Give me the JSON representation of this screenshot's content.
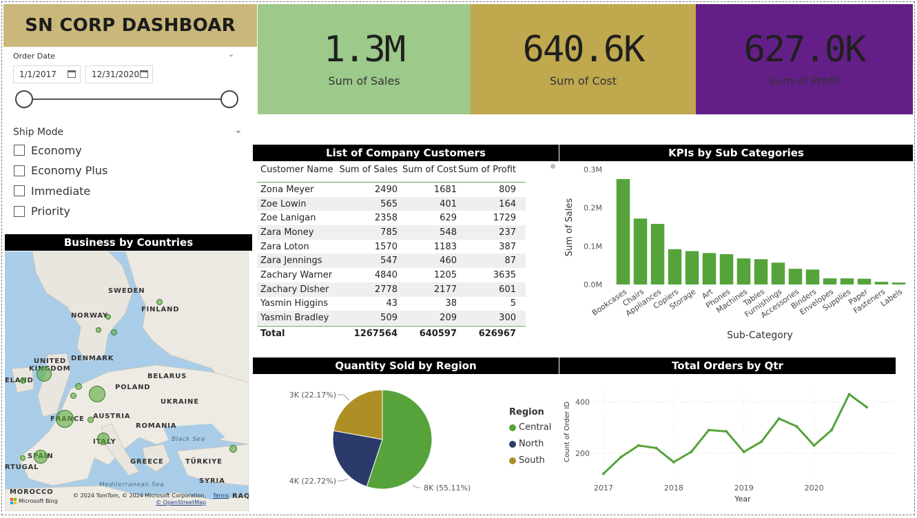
{
  "title": "SN CORP DASHBOAR",
  "order_date": {
    "label": "Order Date",
    "start": "1/1/2017",
    "end": "12/31/2020"
  },
  "ship_mode": {
    "label": "Ship Mode",
    "options": [
      "Economy",
      "Economy Plus",
      "Immediate",
      "Priority"
    ]
  },
  "kpis": [
    {
      "value": "1.3M",
      "label": "Sum of Sales",
      "color": "#9dc98a"
    },
    {
      "value": "640.6K",
      "label": "Sum of Cost",
      "color": "#bfa84e"
    },
    {
      "value": "627.0K",
      "label": "Sum of Profit",
      "color": "#631f87"
    }
  ],
  "customers": {
    "title": "List of Company Customers",
    "columns": [
      "Customer Name",
      "Sum of Sales",
      "Sum of Cost",
      "Sum of Profit"
    ],
    "rows": [
      [
        "Zona Meyer",
        "2490",
        "1681",
        "809"
      ],
      [
        "Zoe Lowin",
        "565",
        "401",
        "164"
      ],
      [
        "Zoe Lanigan",
        "2358",
        "629",
        "1729"
      ],
      [
        "Zara Money",
        "785",
        "548",
        "237"
      ],
      [
        "Zara Loton",
        "1570",
        "1183",
        "387"
      ],
      [
        "Zara Jennings",
        "547",
        "460",
        "87"
      ],
      [
        "Zachary Warner",
        "4840",
        "1205",
        "3635"
      ],
      [
        "Zachary Disher",
        "2778",
        "2177",
        "601"
      ],
      [
        "Yasmin Higgins",
        "43",
        "38",
        "5"
      ],
      [
        "Yasmin Bradley",
        "509",
        "209",
        "300"
      ]
    ],
    "total": [
      "Total",
      "1267564",
      "640597",
      "626967"
    ]
  },
  "map": {
    "title": "Business by Countries",
    "labels": [
      "SWEDEN",
      "FINLAND",
      "NORWAY",
      "UNITED",
      "KINGDOM",
      "DENMARK",
      "BELARUS",
      "POLAND",
      "UKRAINE",
      "FRANCE",
      "AUSTRIA",
      "ROMANIA",
      "ITALY",
      "SPAIN",
      "RTUGAL",
      "GREECE",
      "TÜRKIYE",
      "SYRIA",
      "MOROCCO",
      "ELAND",
      "RAQ"
    ],
    "seas": [
      "Black Sea",
      "Mediterranean Sea"
    ],
    "credit": "© 2024 TomTom, © 2024 Microsoft Corporation,",
    "terms": "Terms",
    "osm": "© OpenStreetMap",
    "bing": "Microsoft Bing",
    "bubble_color": "#5aaa3c"
  },
  "region_legend": {
    "title": "Region",
    "items": [
      {
        "name": "Central",
        "color": "#55a33a"
      },
      {
        "name": "North",
        "color": "#2b3a6b"
      },
      {
        "name": "South",
        "color": "#ad8f25"
      }
    ]
  },
  "chart_data": [
    {
      "type": "bar",
      "title": "KPIs by Sub Categories",
      "xlabel": "Sub-Category",
      "ylabel": "Sum of Sales",
      "categories": [
        "Bookcases",
        "Chairs",
        "Appliances",
        "Copiers",
        "Storage",
        "Art",
        "Phones",
        "Machines",
        "Tables",
        "Furnishings",
        "Accessories",
        "Binders",
        "Envelopes",
        "Supplies",
        "Paper",
        "Fasteners",
        "Labels"
      ],
      "values": [
        0.275,
        0.172,
        0.158,
        0.092,
        0.087,
        0.082,
        0.079,
        0.068,
        0.066,
        0.057,
        0.041,
        0.039,
        0.016,
        0.016,
        0.015,
        0.007,
        0.005
      ],
      "yticks": [
        "0.0M",
        "0.1M",
        "0.2M",
        "0.3M"
      ],
      "ylim": [
        0,
        0.3
      ],
      "color": "#55a33a"
    },
    {
      "type": "pie",
      "title": "Quantity Sold by Region",
      "slices": [
        {
          "name": "Central",
          "value": 55.11,
          "label": "8K (55.11%)",
          "color": "#55a33a"
        },
        {
          "name": "North",
          "value": 22.72,
          "label": "4K (22.72%)",
          "color": "#2b3a6b"
        },
        {
          "name": "South",
          "value": 22.17,
          "label": "3K (22.17%)",
          "color": "#ad8f25"
        }
      ]
    },
    {
      "type": "line",
      "title": "Total Orders by Qtr",
      "xlabel": "Year",
      "ylabel": "Count of Order ID",
      "x": [
        2017.0,
        2017.25,
        2017.5,
        2017.75,
        2018.0,
        2018.25,
        2018.5,
        2018.75,
        2019.0,
        2019.25,
        2019.5,
        2019.75,
        2020.0,
        2020.25,
        2020.5,
        2020.75
      ],
      "values": [
        120,
        185,
        230,
        220,
        165,
        205,
        290,
        285,
        205,
        245,
        335,
        305,
        230,
        290,
        430,
        380
      ],
      "xticks": [
        "2017",
        "2018",
        "2019",
        "2020"
      ],
      "yticks": [
        "200",
        "400"
      ],
      "ylim": [
        100,
        450
      ],
      "color": "#55a33a"
    }
  ]
}
